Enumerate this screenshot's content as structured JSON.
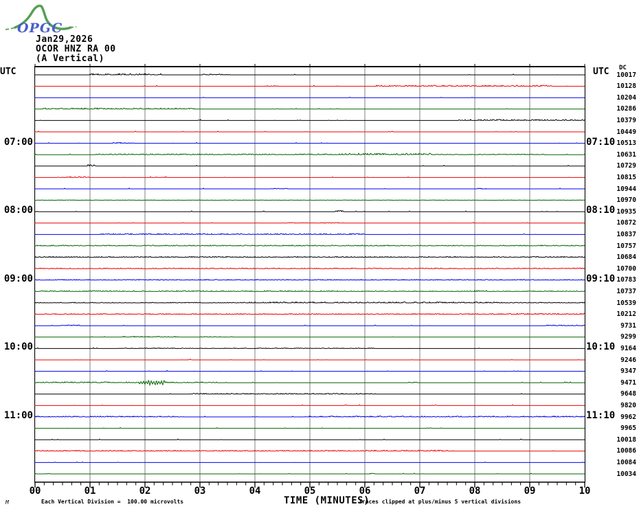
{
  "logo": {
    "text": "OPGC",
    "curve_color": "#55a055",
    "text_color": "#4a5fc8"
  },
  "header": {
    "date": "Jan29,2026",
    "station": "OCOR HNZ RA 00",
    "component": "(A Vertical)"
  },
  "axes": {
    "left_header": "UTC",
    "right_header": "UTC",
    "dc_header": "DC",
    "xlabel": "TIME (MINUTES)"
  },
  "footer": {
    "left": "Each Vertical Division =  100.00 microvolts",
    "right": "Traces clipped at plus/minus 5 vertical divisions",
    "corner_mark": "M"
  },
  "chart_data": {
    "type": "line",
    "subtype": "helicorder",
    "title": "OCOR HNZ RA 00 (A Vertical) Jan29,2026",
    "xlabel": "TIME (MINUTES)",
    "x_range_minutes": [
      0,
      10
    ],
    "x_ticks": [
      "00",
      "01",
      "02",
      "03",
      "04",
      "05",
      "06",
      "07",
      "08",
      "09",
      "10"
    ],
    "minor_ticks_per_division": 5,
    "row_duration_minutes": 10,
    "first_row_start_utc": "06:00",
    "grid": true,
    "grid_color": "#7f7f7f",
    "color_cycle": {
      "black": "#000000",
      "red": "#ee0000",
      "blue": "#0000ee",
      "green": "#006600"
    },
    "rows": [
      {
        "start": "06:00",
        "color": "black",
        "dc": 10017,
        "left_label": null,
        "right_label": null,
        "events": [
          [
            1.0,
            2.3,
            1.8
          ],
          [
            3.05,
            3.55,
            1.2
          ]
        ]
      },
      {
        "start": "06:10",
        "color": "red",
        "dc": 10128,
        "left_label": null,
        "right_label": null,
        "events": [
          [
            4.2,
            4.45,
            1.2
          ],
          [
            6.2,
            9.4,
            1.5
          ]
        ]
      },
      {
        "start": "06:20",
        "color": "blue",
        "dc": 10204,
        "left_label": null,
        "right_label": null,
        "events": []
      },
      {
        "start": "06:30",
        "color": "green",
        "dc": 10286,
        "left_label": null,
        "right_label": null,
        "events": [
          [
            0.15,
            2.9,
            1.5
          ],
          [
            4.3,
            4.5,
            1.0
          ]
        ]
      },
      {
        "start": "06:40",
        "color": "black",
        "dc": 10379,
        "left_label": null,
        "right_label": null,
        "events": [
          [
            7.7,
            10,
            1.5
          ]
        ]
      },
      {
        "start": "06:50",
        "color": "red",
        "dc": 10449,
        "left_label": null,
        "right_label": null,
        "events": [
          [
            6.4,
            6.5,
            1.0
          ]
        ]
      },
      {
        "start": "07:00",
        "color": "blue",
        "dc": 10513,
        "left_label": "07:00",
        "right_label": "07:10",
        "events": [
          [
            1.3,
            1.8,
            1.2
          ]
        ]
      },
      {
        "start": "07:10",
        "color": "green",
        "dc": 10631,
        "left_label": null,
        "right_label": null,
        "events": [
          [
            1.1,
            5.5,
            1.1
          ],
          [
            5.5,
            7.2,
            2.0
          ],
          [
            7.2,
            9.3,
            0.8
          ]
        ]
      },
      {
        "start": "07:20",
        "color": "black",
        "dc": 10729,
        "left_label": null,
        "right_label": null,
        "events": [
          [
            0.95,
            1.1,
            2.0
          ]
        ]
      },
      {
        "start": "07:30",
        "color": "red",
        "dc": 10815,
        "left_label": null,
        "right_label": null,
        "events": [
          [
            0.4,
            1.0,
            1.3
          ],
          [
            2.2,
            2.4,
            1.0
          ]
        ]
      },
      {
        "start": "07:40",
        "color": "blue",
        "dc": 10944,
        "left_label": null,
        "right_label": null,
        "events": [
          [
            4.3,
            4.6,
            0.9
          ],
          [
            8.05,
            8.2,
            1.1
          ]
        ]
      },
      {
        "start": "07:50",
        "color": "green",
        "dc": 10970,
        "left_label": null,
        "right_label": null,
        "events": [
          [
            0,
            10,
            0.5
          ]
        ]
      },
      {
        "start": "08:00",
        "color": "black",
        "dc": 10935,
        "left_label": "08:00",
        "right_label": "08:10",
        "events": [
          [
            5.45,
            5.6,
            1.7
          ]
        ]
      },
      {
        "start": "08:10",
        "color": "red",
        "dc": 10872,
        "left_label": null,
        "right_label": null,
        "events": [
          [
            4.5,
            5.6,
            0.8
          ]
        ]
      },
      {
        "start": "08:20",
        "color": "blue",
        "dc": 10837,
        "left_label": null,
        "right_label": null,
        "events": [
          [
            1.2,
            6.0,
            1.3
          ],
          [
            8.85,
            8.95,
            1.0
          ]
        ]
      },
      {
        "start": "08:30",
        "color": "green",
        "dc": 10757,
        "left_label": null,
        "right_label": null,
        "events": [
          [
            0,
            10,
            1.1
          ]
        ]
      },
      {
        "start": "08:40",
        "color": "black",
        "dc": 10684,
        "left_label": null,
        "right_label": null,
        "events": [
          [
            0,
            10,
            1.1
          ]
        ]
      },
      {
        "start": "08:50",
        "color": "red",
        "dc": 10700,
        "left_label": null,
        "right_label": null,
        "events": [
          [
            0,
            10,
            1.0
          ]
        ]
      },
      {
        "start": "09:00",
        "color": "blue",
        "dc": 10783,
        "left_label": "09:00",
        "right_label": "09:10",
        "events": [
          [
            0,
            10,
            1.0
          ]
        ]
      },
      {
        "start": "09:10",
        "color": "green",
        "dc": 10737,
        "left_label": null,
        "right_label": null,
        "events": [
          [
            0,
            5.5,
            1.2
          ],
          [
            5.5,
            10,
            0.9
          ],
          [
            8.0,
            8.3,
            1.8
          ]
        ]
      },
      {
        "start": "09:20",
        "color": "black",
        "dc": 10539,
        "left_label": null,
        "right_label": null,
        "events": [
          [
            0,
            10,
            0.9
          ],
          [
            3.9,
            8.6,
            1.5
          ]
        ]
      },
      {
        "start": "09:30",
        "color": "red",
        "dc": 10212,
        "left_label": null,
        "right_label": null,
        "events": [
          [
            0,
            10,
            1.0
          ],
          [
            8.5,
            10,
            1.4
          ]
        ]
      },
      {
        "start": "09:40",
        "color": "blue",
        "dc": 9731,
        "left_label": null,
        "right_label": null,
        "events": [
          [
            0.3,
            0.8,
            1.2
          ],
          [
            9.3,
            10,
            1.0
          ]
        ]
      },
      {
        "start": "09:50",
        "color": "green",
        "dc": 9299,
        "left_label": null,
        "right_label": null,
        "events": [
          [
            1.6,
            2.6,
            1.3
          ],
          [
            3.0,
            3.6,
            0.9
          ]
        ]
      },
      {
        "start": "10:00",
        "color": "black",
        "dc": 9164,
        "left_label": "10:00",
        "right_label": "10:10",
        "events": [
          [
            1.5,
            6.2,
            0.8
          ]
        ]
      },
      {
        "start": "10:10",
        "color": "red",
        "dc": 9246,
        "left_label": null,
        "right_label": null,
        "events": [
          [
            2.75,
            2.85,
            1.4
          ]
        ]
      },
      {
        "start": "10:20",
        "color": "blue",
        "dc": 9347,
        "left_label": null,
        "right_label": null,
        "events": [
          [
            8.7,
            8.85,
            0.9
          ]
        ]
      },
      {
        "start": "10:30",
        "color": "green",
        "dc": 9471,
        "left_label": null,
        "right_label": null,
        "events": [
          [
            0,
            3.3,
            1.2
          ],
          [
            1.9,
            2.05,
            2.5
          ],
          [
            2.05,
            2.35,
            4.5
          ],
          [
            6.8,
            7.0,
            0.9
          ]
        ]
      },
      {
        "start": "10:40",
        "color": "black",
        "dc": 9648,
        "left_label": null,
        "right_label": null,
        "events": [
          [
            2.8,
            6.2,
            1.2
          ]
        ]
      },
      {
        "start": "10:50",
        "color": "red",
        "dc": 9820,
        "left_label": null,
        "right_label": null,
        "events": [
          [
            5.6,
            5.7,
            0.9
          ],
          [
            7.2,
            7.3,
            0.9
          ]
        ]
      },
      {
        "start": "11:00",
        "color": "blue",
        "dc": 9962,
        "left_label": "11:00",
        "right_label": "11:10",
        "events": [
          [
            0,
            2.7,
            1.2
          ],
          [
            4.9,
            10,
            1.3
          ]
        ]
      },
      {
        "start": "11:10",
        "color": "green",
        "dc": 9965,
        "left_label": null,
        "right_label": null,
        "events": [
          [
            4.7,
            4.8,
            0.9
          ],
          [
            7.1,
            7.2,
            0.9
          ]
        ]
      },
      {
        "start": "11:20",
        "color": "black",
        "dc": 10018,
        "left_label": null,
        "right_label": null,
        "events": []
      },
      {
        "start": "11:30",
        "color": "red",
        "dc": 10086,
        "left_label": null,
        "right_label": null,
        "events": [
          [
            0,
            7.5,
            1.2
          ],
          [
            5.7,
            7.4,
            1.5
          ]
        ]
      },
      {
        "start": "11:40",
        "color": "blue",
        "dc": 10084,
        "left_label": null,
        "right_label": null,
        "events": []
      },
      {
        "start": "11:50",
        "color": "green",
        "dc": 10034,
        "left_label": null,
        "right_label": null,
        "events": [
          [
            0.2,
            0.3,
            0.9
          ],
          [
            6.1,
            6.2,
            0.9
          ]
        ]
      }
    ]
  }
}
